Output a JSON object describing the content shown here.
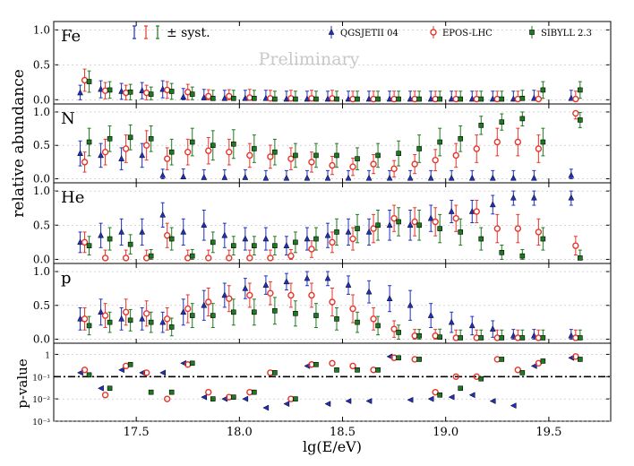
{
  "chart_data": {
    "type": "scatter",
    "xlabel": "lg(E/eV)",
    "ylabel_abundance": "relative abundance",
    "ylabel_pvalue": "p-value",
    "watermark": "Preliminary",
    "xlim": [
      17.1,
      19.8
    ],
    "xticks": [
      "17.5",
      "18.0",
      "18.5",
      "19.0",
      "19.5"
    ],
    "xtick_values": [
      17.5,
      18.0,
      18.5,
      19.0,
      19.5
    ],
    "abundance_ylim": [
      -0.06,
      1.12
    ],
    "abundance_yticks": [
      "0.0",
      "0.5",
      "1.0"
    ],
    "abundance_ytick_values": [
      0.0,
      0.5,
      1.0
    ],
    "pvalue_yticks": [
      "10⁻³",
      "10⁻²",
      "10⁻¹",
      "1"
    ],
    "pvalue_ytick_values": [
      -3,
      -2,
      -1,
      0
    ],
    "pvalue_threshold": 0.1,
    "legend": {
      "syst_label": "± syst.",
      "entries": [
        {
          "name": "QGSJETII 04",
          "color": "#1f2fbf",
          "marker": "triangle"
        },
        {
          "name": "EPOS-LHC",
          "color": "#e8342a",
          "marker": "circle"
        },
        {
          "name": "SIBYLL 2.3",
          "color": "#1e7a1e",
          "marker": "square"
        }
      ]
    },
    "x": [
      17.25,
      17.35,
      17.45,
      17.55,
      17.65,
      17.75,
      17.85,
      17.95,
      18.05,
      18.15,
      18.25,
      18.35,
      18.45,
      18.55,
      18.65,
      18.75,
      18.85,
      18.95,
      19.05,
      19.15,
      19.25,
      19.35,
      19.45,
      19.63
    ],
    "panels": [
      {
        "label": "Fe",
        "series": [
          {
            "name": "QGSJETII 04",
            "values": [
              0.1,
              0.15,
              0.12,
              0.13,
              0.15,
              0.04,
              0.03,
              0.02,
              0.02,
              0.02,
              0.01,
              0.01,
              0.01,
              0.01,
              0.01,
              0.01,
              0.01,
              0.01,
              0.01,
              0.01,
              0.01,
              0.01,
              0.02,
              0.02
            ]
          },
          {
            "name": "EPOS-LHC",
            "values": [
              0.28,
              0.13,
              0.1,
              0.1,
              0.14,
              0.11,
              0.05,
              0.05,
              0.03,
              0.02,
              0.02,
              0.02,
              0.02,
              0.01,
              0.01,
              0.01,
              0.01,
              0.01,
              0.01,
              0.01,
              0.01,
              0.01,
              0.01,
              0.01
            ]
          },
          {
            "name": "SIBYLL 2.3",
            "values": [
              0.26,
              0.14,
              0.11,
              0.08,
              0.12,
              0.08,
              0.02,
              0.02,
              0.02,
              0.01,
              0.01,
              0.01,
              0.01,
              0.01,
              0.01,
              0.01,
              0.01,
              0.01,
              0.01,
              0.01,
              0.01,
              0.02,
              0.14,
              0.14
            ]
          }
        ]
      },
      {
        "label": "N",
        "series": [
          {
            "name": "QGSJETII 04",
            "values": [
              0.38,
              0.35,
              0.3,
              0.35,
              0.05,
              0.03,
              0.02,
              0.02,
              0.02,
              0.01,
              0.01,
              0.01,
              0.01,
              0.01,
              0.01,
              0.01,
              0.01,
              0.01,
              0.01,
              0.01,
              0.01,
              0.01,
              0.01,
              0.05
            ]
          },
          {
            "name": "EPOS-LHC",
            "values": [
              0.25,
              0.4,
              0.45,
              0.5,
              0.3,
              0.4,
              0.42,
              0.4,
              0.35,
              0.33,
              0.3,
              0.25,
              0.2,
              0.18,
              0.22,
              0.15,
              0.22,
              0.28,
              0.35,
              0.45,
              0.55,
              0.55,
              0.45,
              0.98
            ]
          },
          {
            "name": "SIBYLL 2.3",
            "values": [
              0.55,
              0.6,
              0.62,
              0.6,
              0.4,
              0.55,
              0.5,
              0.52,
              0.45,
              0.4,
              0.35,
              0.35,
              0.35,
              0.3,
              0.35,
              0.38,
              0.45,
              0.55,
              0.6,
              0.8,
              0.85,
              0.9,
              0.55,
              0.88
            ]
          }
        ]
      },
      {
        "label": "He",
        "series": [
          {
            "name": "QGSJETII 04",
            "values": [
              0.25,
              0.35,
              0.4,
              0.4,
              0.65,
              0.4,
              0.5,
              0.35,
              0.3,
              0.3,
              0.2,
              0.3,
              0.35,
              0.4,
              0.4,
              0.5,
              0.5,
              0.6,
              0.7,
              0.7,
              0.8,
              0.9,
              0.9,
              0.9
            ]
          },
          {
            "name": "EPOS-LHC",
            "values": [
              0.25,
              0.02,
              0.02,
              0.02,
              0.35,
              0.02,
              0.02,
              0.02,
              0.02,
              0.02,
              0.05,
              0.15,
              0.25,
              0.3,
              0.45,
              0.6,
              0.55,
              0.55,
              0.6,
              0.7,
              0.45,
              0.45,
              0.4,
              0.2
            ]
          },
          {
            "name": "SIBYLL 2.3",
            "values": [
              0.2,
              0.3,
              0.22,
              0.05,
              0.3,
              0.05,
              0.25,
              0.2,
              0.2,
              0.2,
              0.25,
              0.3,
              0.4,
              0.45,
              0.5,
              0.55,
              0.5,
              0.45,
              0.4,
              0.3,
              0.1,
              0.05,
              0.3,
              0.02
            ]
          }
        ]
      },
      {
        "label": "p",
        "series": [
          {
            "name": "QGSJETII 04",
            "values": [
              0.3,
              0.4,
              0.3,
              0.3,
              0.25,
              0.4,
              0.5,
              0.65,
              0.75,
              0.8,
              0.85,
              0.9,
              0.9,
              0.8,
              0.7,
              0.6,
              0.5,
              0.35,
              0.25,
              0.2,
              0.15,
              0.05,
              0.05,
              0.05
            ]
          },
          {
            "name": "EPOS-LHC",
            "values": [
              0.3,
              0.35,
              0.4,
              0.38,
              0.3,
              0.45,
              0.55,
              0.6,
              0.65,
              0.68,
              0.65,
              0.65,
              0.55,
              0.45,
              0.3,
              0.15,
              0.05,
              0.05,
              0.02,
              0.02,
              0.02,
              0.02,
              0.02,
              0.02
            ]
          },
          {
            "name": "SIBYLL 2.3",
            "values": [
              0.2,
              0.25,
              0.28,
              0.25,
              0.18,
              0.35,
              0.35,
              0.4,
              0.4,
              0.42,
              0.38,
              0.35,
              0.3,
              0.25,
              0.2,
              0.1,
              0.05,
              0.03,
              0.02,
              0.02,
              0.02,
              0.02,
              0.02,
              0.02
            ]
          }
        ]
      }
    ],
    "pvalue_series": [
      {
        "name": "QGSJETII 04",
        "values": [
          0.15,
          0.03,
          0.2,
          0.15,
          0.15,
          0.4,
          0.012,
          0.01,
          0.01,
          0.004,
          0.006,
          0.3,
          0.006,
          0.008,
          0.008,
          0.8,
          0.009,
          0.01,
          0.012,
          0.015,
          0.008,
          0.005,
          0.3,
          0.7
        ]
      },
      {
        "name": "EPOS-LHC",
        "values": [
          0.2,
          0.015,
          0.3,
          0.15,
          0.01,
          0.35,
          0.02,
          0.012,
          0.02,
          0.15,
          0.01,
          0.35,
          0.4,
          0.3,
          0.2,
          0.7,
          0.6,
          0.02,
          0.1,
          0.1,
          0.6,
          0.2,
          0.4,
          0.8
        ]
      },
      {
        "name": "SIBYLL 2.3",
        "values": [
          0.12,
          0.03,
          0.35,
          0.02,
          0.02,
          0.4,
          0.01,
          0.012,
          0.02,
          0.15,
          0.01,
          0.35,
          0.2,
          0.2,
          0.2,
          0.7,
          0.6,
          0.015,
          0.03,
          0.08,
          0.6,
          0.15,
          0.5,
          0.6
        ]
      }
    ]
  }
}
